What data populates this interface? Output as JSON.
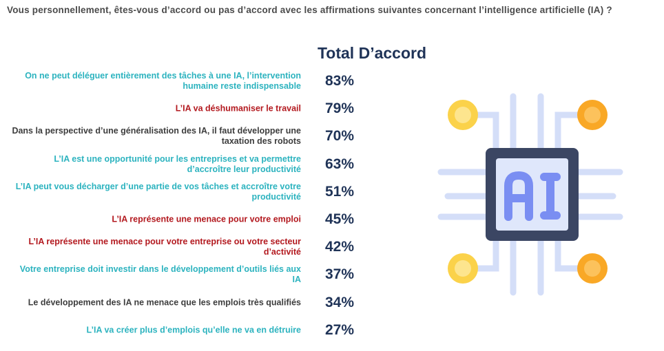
{
  "question": "Vous personnellement, êtes-vous d’accord ou pas d’accord avec les affirmations suivantes concernant l’intelligence artificielle (IA) ?",
  "heading": "Total D’accord",
  "items": [
    {
      "label": "On ne peut déléguer entièrement des tâches à une IA, l’intervention humaine reste indispensable",
      "value": "83%",
      "color": "#2cb3bf"
    },
    {
      "label": "L’IA va déshumaniser le travail",
      "value": "79%",
      "color": "#b3191f"
    },
    {
      "label": "Dans la perspective d’une généralisation des IA, il faut développer une taxation des robots",
      "value": "70%",
      "color": "#3d3d3d"
    },
    {
      "label": "L’IA est une opportunité pour les entreprises et va permettre d’accroître leur productivité",
      "value": "63%",
      "color": "#2cb3bf"
    },
    {
      "label": "L’IA peut vous décharger d’une partie de vos tâches et accroître votre productivité",
      "value": "51%",
      "color": "#2cb3bf"
    },
    {
      "label": "L’IA représente une menace pour votre emploi",
      "value": "45%",
      "color": "#b3191f"
    },
    {
      "label": "L’IA représente une menace pour votre entreprise ou votre secteur d’activité",
      "value": "42%",
      "color": "#b3191f"
    },
    {
      "label": "Votre entreprise doit investir dans le développement d’outils liés aux IA",
      "value": "37%",
      "color": "#2cb3bf"
    },
    {
      "label": "Le développement des IA ne menace que les emplois très qualifiés",
      "value": "34%",
      "color": "#3d3d3d"
    },
    {
      "label": "L’IA va créer plus d’emplois qu’elle ne va en détruire",
      "value": "27%",
      "color": "#2cb3bf"
    }
  ]
}
